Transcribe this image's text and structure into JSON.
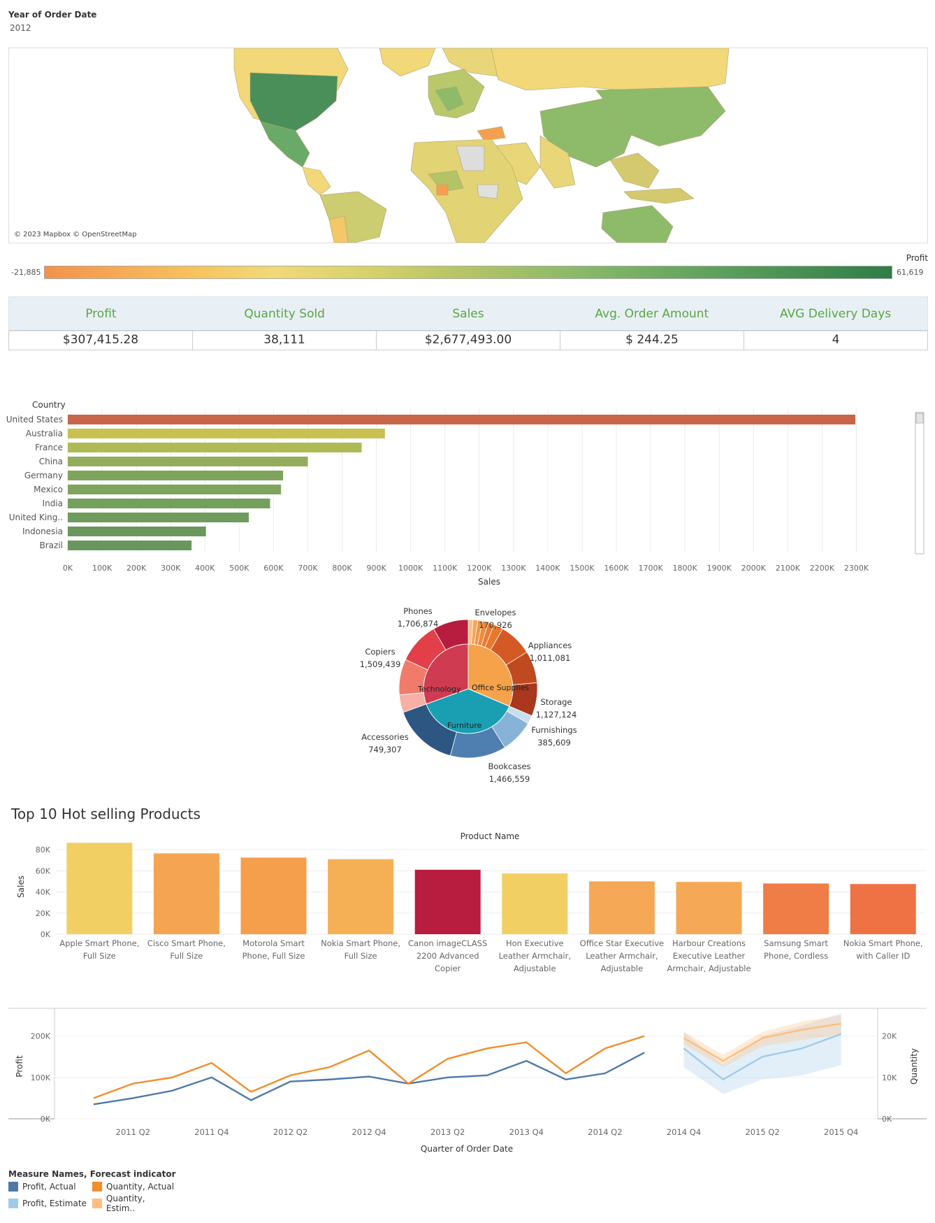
{
  "filter": {
    "title": "Year of Order Date",
    "value": "2012"
  },
  "map": {
    "attribution": "© 2023 Mapbox © OpenStreetMap",
    "legend_title": "Profit",
    "legend_min": "-21,885",
    "legend_max": "61,619"
  },
  "kpis": {
    "headers": [
      "Profit",
      "Quantity Sold",
      "Sales",
      "Avg. Order Amount",
      "AVG Delivery Days"
    ],
    "values": [
      "$307,415.28",
      "38,111",
      "$2,677,493.00",
      "$ 244.25",
      "4"
    ]
  },
  "section": {
    "top_products_title": "Top 10 Hot selling Products"
  },
  "legend": {
    "title": "Measure Names, Forecast indicator",
    "items": [
      "Profit, Actual",
      "Quantity, Actual",
      "Profit, Estimate",
      "Quantity, Estim.."
    ]
  },
  "colors": {
    "profit_actual": "#4e79a7",
    "profit_estimate": "#a0cbe8",
    "quantity_actual": "#f28e2b",
    "quantity_estimate": "#ffbe7d",
    "us_bar": "#c8654a"
  },
  "chart_data": [
    {
      "type": "bar",
      "orientation": "horizontal",
      "row_header": "Country",
      "xlabel": "Sales",
      "categories": [
        "United States",
        "Australia",
        "France",
        "China",
        "Germany",
        "Mexico",
        "India",
        "United King..",
        "Indonesia",
        "Brazil"
      ],
      "values": [
        2297000,
        925000,
        857000,
        700000,
        628000,
        622000,
        590000,
        528000,
        403000,
        361000
      ],
      "xlim": [
        0,
        2350000
      ],
      "ticks": [
        "0K",
        "100K",
        "200K",
        "300K",
        "400K",
        "500K",
        "600K",
        "700K",
        "800K",
        "900K",
        "1000K",
        "1100K",
        "1200K",
        "1300K",
        "1400K",
        "1500K",
        "1600K",
        "1700K",
        "1800K",
        "1900K",
        "2000K",
        "2100K",
        "2200K",
        "2300K"
      ]
    },
    {
      "type": "pie",
      "variant": "sunburst",
      "inner": [
        {
          "label": "Office Supplies"
        },
        {
          "label": "Furniture"
        },
        {
          "label": "Technology"
        }
      ],
      "outer_labeled": [
        {
          "name": "Envelopes",
          "value": "170,926"
        },
        {
          "name": "Appliances",
          "value": "1,011,081"
        },
        {
          "name": "Storage",
          "value": "1,127,124"
        },
        {
          "name": "Furnishings",
          "value": "385,609"
        },
        {
          "name": "Bookcases",
          "value": "1,466,559"
        },
        {
          "name": "Accessories",
          "value": "749,307"
        },
        {
          "name": "Copiers",
          "value": "1,509,439"
        },
        {
          "name": "Phones",
          "value": "1,706,874"
        }
      ]
    },
    {
      "type": "bar",
      "title": "Product Name",
      "ylabel": "Sales",
      "categories": [
        [
          "Apple Smart Phone,",
          "Full Size"
        ],
        [
          "Cisco Smart Phone,",
          "Full Size"
        ],
        [
          "Motorola Smart",
          "Phone, Full Size"
        ],
        [
          "Nokia Smart Phone,",
          "Full Size"
        ],
        [
          "Canon imageCLASS",
          "2200 Advanced",
          "Copier"
        ],
        [
          "Hon Executive",
          "Leather Armchair,",
          "Adjustable"
        ],
        [
          "Office Star Executive",
          "Leather Armchair,",
          "Adjustable"
        ],
        [
          "Harbour Creations",
          "Executive Leather",
          "Armchair, Adjustable"
        ],
        [
          "Samsung Smart",
          "Phone, Cordless"
        ],
        [
          "Nokia Smart Phone,",
          "with Caller ID"
        ]
      ],
      "values": [
        86500,
        76500,
        72500,
        71000,
        61000,
        57500,
        50000,
        49500,
        48000,
        47500
      ],
      "ylim": [
        0,
        90000
      ],
      "yticks": [
        "0K",
        "20K",
        "40K",
        "60K",
        "80K"
      ],
      "colors": [
        "#f1cf63",
        "#f5a551",
        "#f59e4c",
        "#f5b055",
        "#b81c3e",
        "#f1cf63",
        "#f5a856",
        "#f5a856",
        "#f07d45",
        "#ef7245"
      ]
    },
    {
      "type": "line",
      "xlabel": "Quarter of Order Date",
      "ylabel_left": "Profit",
      "ylabel_right": "Quantity",
      "quarters": [
        "2011 Q1",
        "2011 Q2",
        "2011 Q3",
        "2011 Q4",
        "2012 Q1",
        "2012 Q2",
        "2012 Q3",
        "2012 Q4",
        "2013 Q1",
        "2013 Q2",
        "2013 Q3",
        "2013 Q4",
        "2014 Q1",
        "2014 Q2",
        "2014 Q3",
        "2014 Q4",
        "2015 Q1",
        "2015 Q2",
        "2015 Q3",
        "2015 Q4"
      ],
      "xticks": [
        "2011 Q2",
        "2011 Q4",
        "2012 Q2",
        "2012 Q4",
        "2013 Q2",
        "2013 Q4",
        "2014 Q2",
        "2014 Q4",
        "2015 Q2",
        "2015 Q4"
      ],
      "yticks_left": [
        "0K",
        "100K",
        "200K"
      ],
      "yticks_right": [
        "0K",
        "10K",
        "20K"
      ],
      "ylim_left": [
        0,
        250000
      ],
      "ylim_right": [
        0,
        25000
      ],
      "series": [
        {
          "name": "Profit, Actual",
          "axis": "left",
          "start": 0,
          "values": [
            35000,
            50000,
            68000,
            100000,
            45000,
            90000,
            95000,
            102000,
            85000,
            100000,
            105000,
            140000,
            95000,
            110000,
            160000
          ]
        },
        {
          "name": "Quantity, Actual",
          "axis": "right",
          "start": 0,
          "values": [
            5000,
            8500,
            10000,
            13500,
            6500,
            10500,
            12500,
            16500,
            8500,
            14500,
            17000,
            18500,
            11000,
            17000,
            20000
          ]
        },
        {
          "name": "Profit, Estimate",
          "axis": "left",
          "start": 15,
          "values": [
            170000,
            95000,
            150000,
            170000,
            205000
          ],
          "band_low": [
            125000,
            60000,
            95000,
            105000,
            130000
          ],
          "band_high": [
            210000,
            130000,
            200000,
            225000,
            255000
          ]
        },
        {
          "name": "Quantity, Estimate",
          "axis": "right",
          "start": 15,
          "values": [
            19500,
            14000,
            19500,
            21500,
            23000
          ],
          "band_low": [
            18000,
            12500,
            17500,
            19000,
            20500
          ],
          "band_high": [
            21000,
            15500,
            21000,
            23500,
            25000
          ]
        }
      ]
    }
  ]
}
